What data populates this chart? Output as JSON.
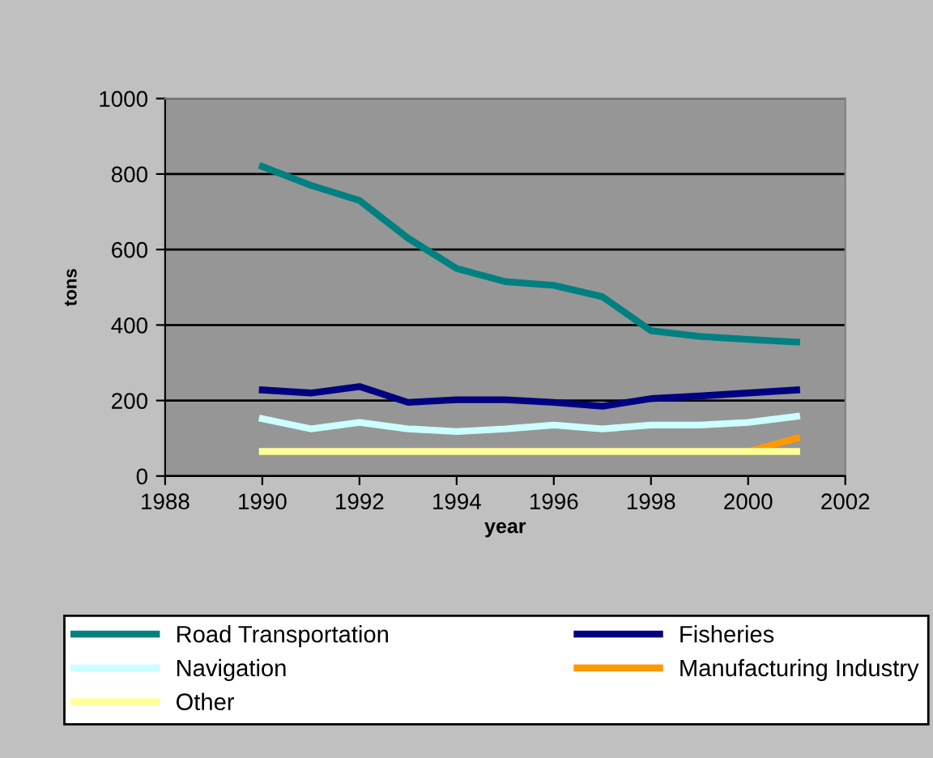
{
  "chart_data": {
    "type": "line",
    "xlabel": "year",
    "ylabel": "tons",
    "x": [
      1990,
      1991,
      1992,
      1993,
      1994,
      1995,
      1996,
      1997,
      1998,
      1999,
      2000,
      2001
    ],
    "series": [
      {
        "name": "Road Transportation",
        "color": "#008080",
        "values": [
          820,
          770,
          730,
          630,
          550,
          515,
          505,
          475,
          385,
          370,
          362,
          355
        ]
      },
      {
        "name": "Fisheries",
        "color": "#000080",
        "values": [
          228,
          220,
          237,
          195,
          202,
          202,
          195,
          185,
          205,
          212,
          220,
          228
        ]
      },
      {
        "name": "Navigation",
        "color": "#ccffff",
        "values": [
          152,
          125,
          142,
          125,
          118,
          125,
          135,
          125,
          135,
          135,
          142,
          158
        ]
      },
      {
        "name": "Manufacturing Industry",
        "color": "#ff9900",
        "values": [
          null,
          null,
          null,
          null,
          null,
          null,
          null,
          null,
          null,
          null,
          65,
          100
        ]
      },
      {
        "name": "Other",
        "color": "#ffff99",
        "values": [
          65,
          65,
          65,
          65,
          65,
          65,
          65,
          65,
          65,
          65,
          65,
          65
        ]
      }
    ],
    "xlim": [
      1988,
      2002
    ],
    "xticks": [
      1988,
      1990,
      1992,
      1994,
      1996,
      1998,
      2000,
      2002
    ],
    "ylim": [
      0,
      1000
    ],
    "yticks": [
      0,
      200,
      400,
      600,
      800,
      1000
    ],
    "grid": "y",
    "legend": "bottom",
    "marker": "none",
    "line_style": "solid"
  }
}
